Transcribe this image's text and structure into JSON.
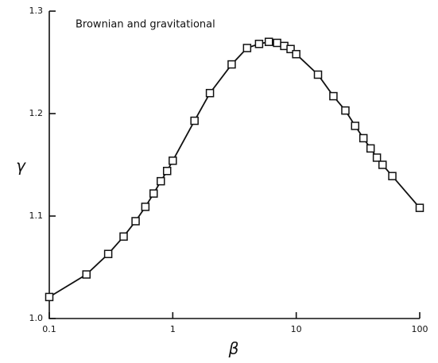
{
  "chart_data": {
    "type": "line",
    "annotation": "Brownian and gravitational",
    "x_label": "β",
    "y_label": "γ",
    "x": [
      0.1,
      0.2,
      0.3,
      0.4,
      0.5,
      0.6,
      0.7,
      0.8,
      0.9,
      1,
      1.5,
      2,
      3,
      4,
      5,
      6,
      7,
      8,
      9,
      10,
      15,
      20,
      25,
      30,
      35,
      40,
      45,
      50,
      60,
      100
    ],
    "series": [
      {
        "name": "γ",
        "color": "#111111",
        "values": [
          1.021,
          1.043,
          1.063,
          1.08,
          1.095,
          1.109,
          1.122,
          1.134,
          1.144,
          1.154,
          1.193,
          1.22,
          1.248,
          1.264,
          1.268,
          1.27,
          1.269,
          1.266,
          1.263,
          1.258,
          1.238,
          1.217,
          1.203,
          1.188,
          1.176,
          1.166,
          1.157,
          1.15,
          1.139,
          1.108
        ]
      }
    ],
    "xlim": [
      0.1,
      100
    ],
    "xticks": [
      0.1,
      1,
      10,
      100
    ],
    "xscale": "log",
    "ylim": [
      1,
      1.3
    ],
    "yticks": [
      {
        "value": 1,
        "label": "1.0"
      },
      1.1,
      1.2,
      1.3
    ]
  }
}
